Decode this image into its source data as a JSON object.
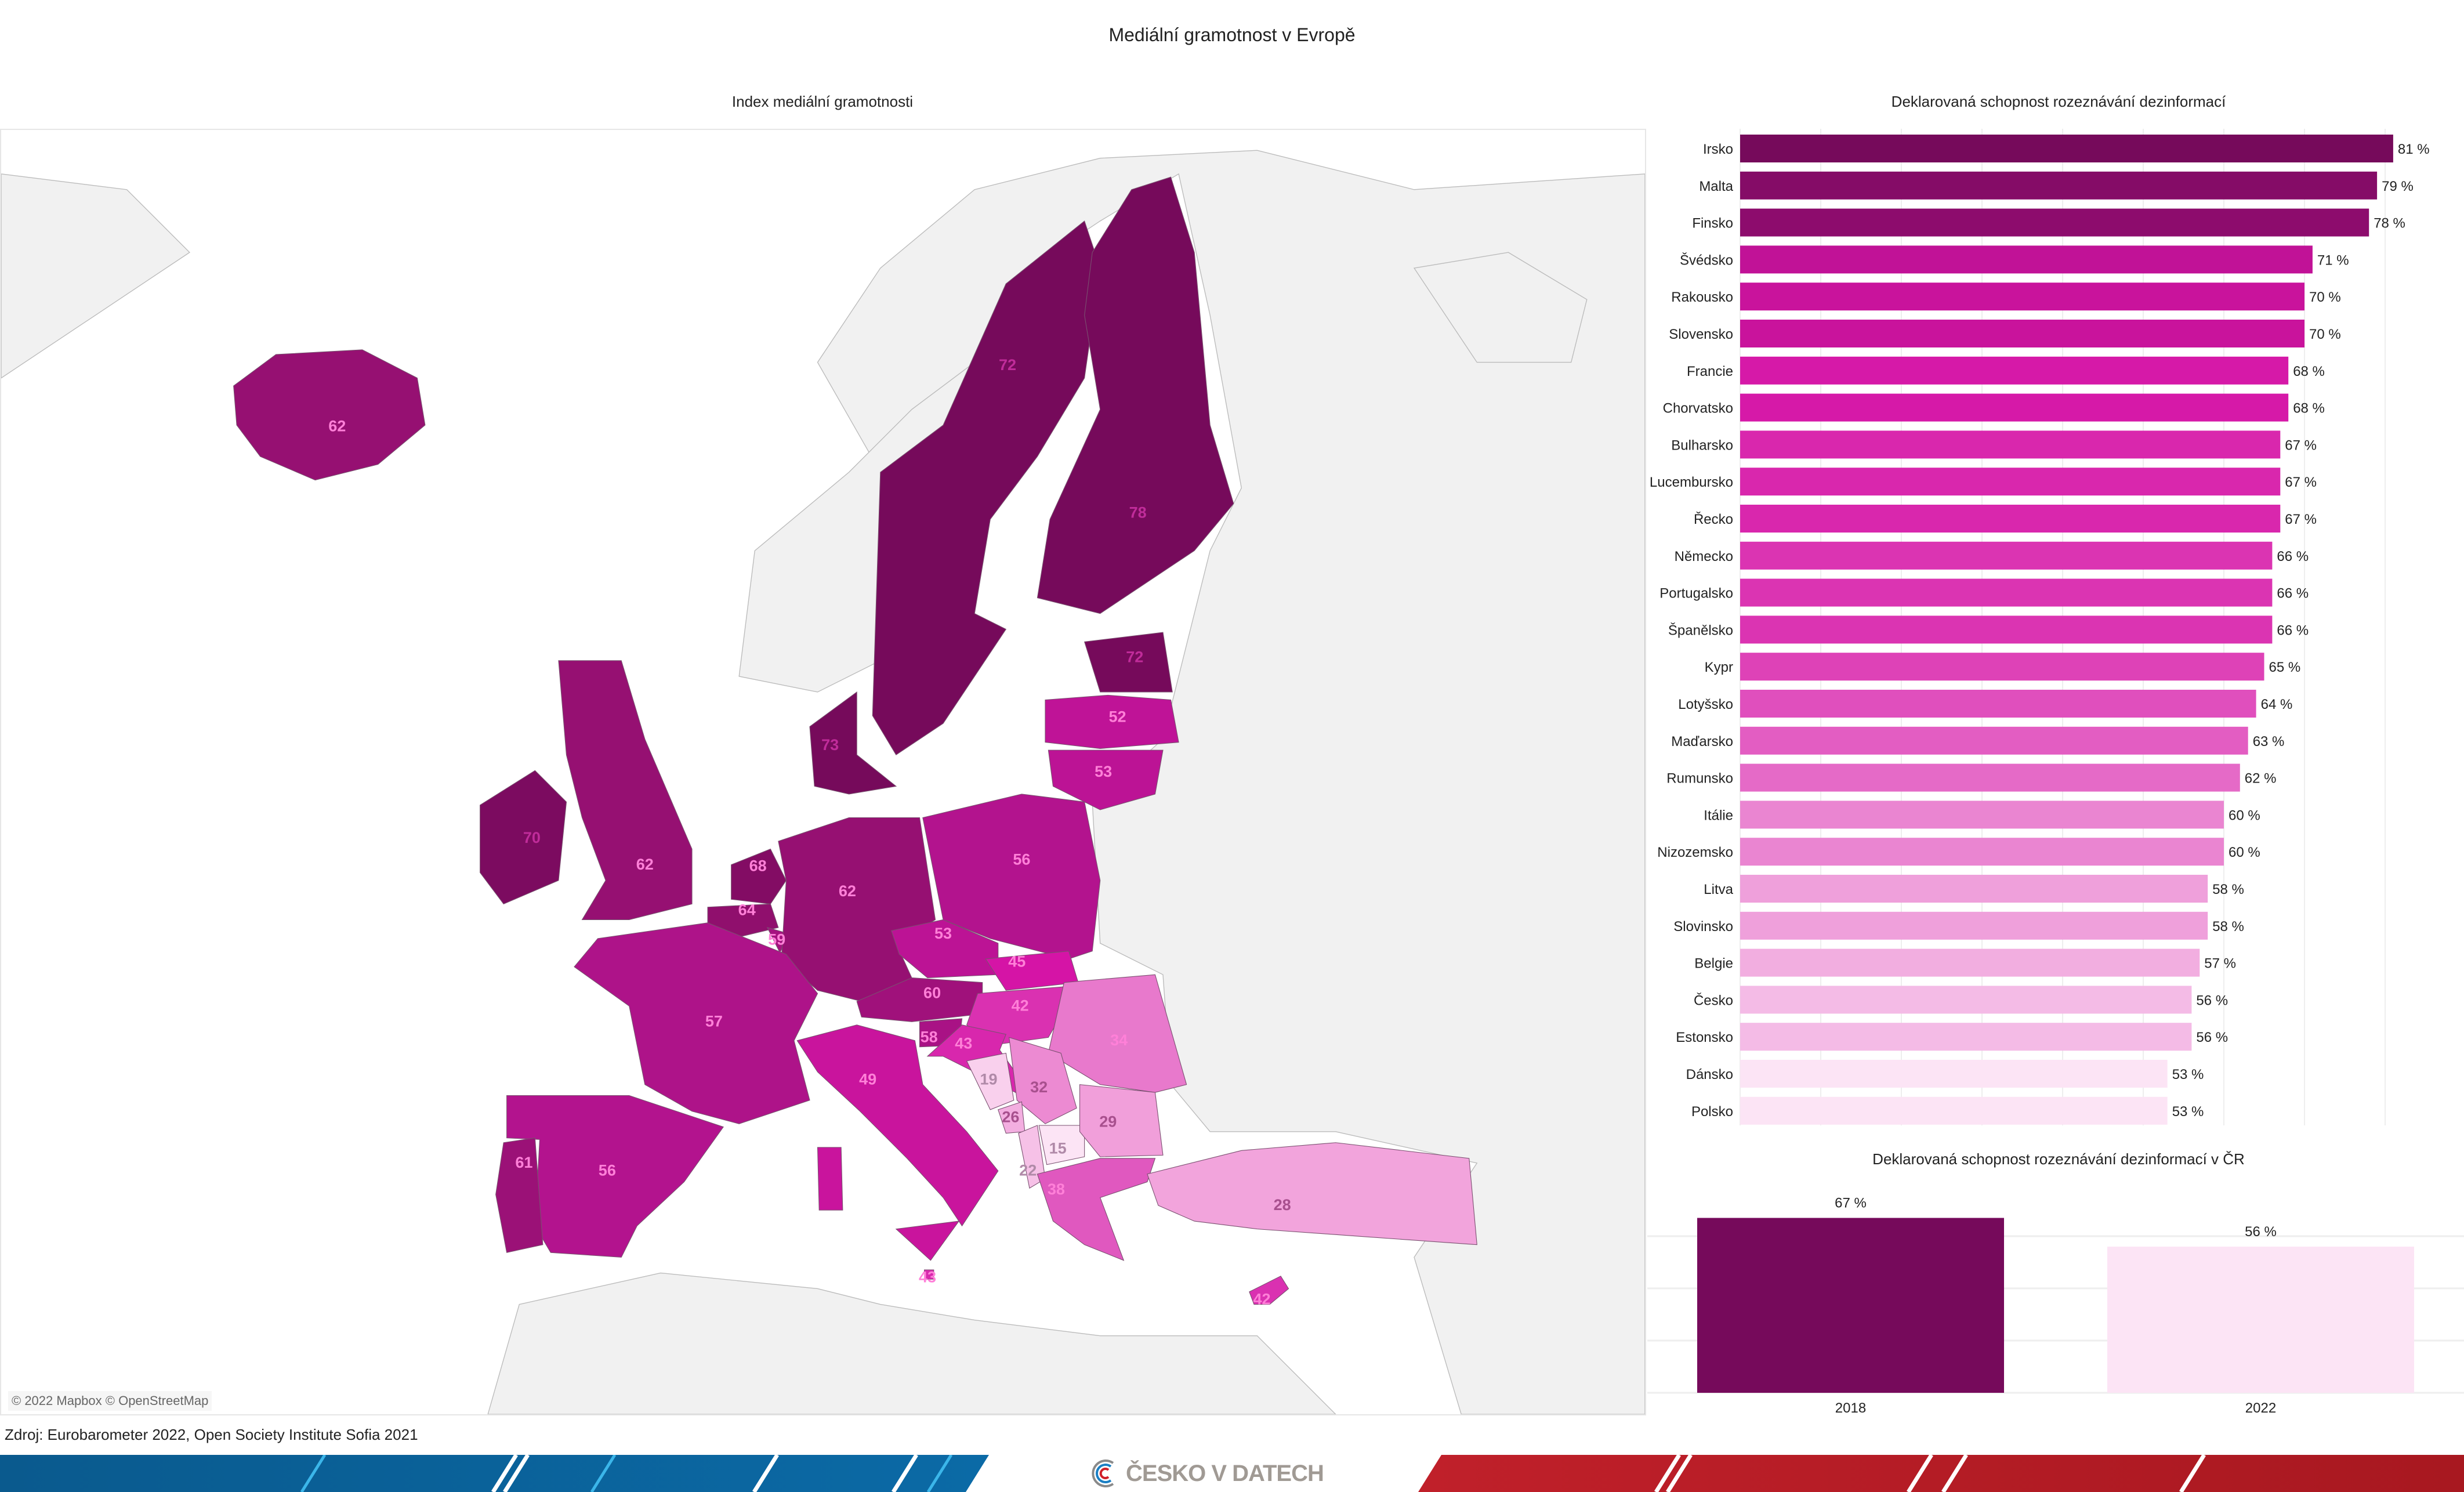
{
  "title": "Mediální gramotnost v Evropě",
  "map": {
    "title": "Index mediální gramotnosti",
    "attribution": "© 2022 Mapbox © OpenStreetMap",
    "values": {
      "IS": 62,
      "SE": 72,
      "FI": 78,
      "EE": 72,
      "LV": 52,
      "LT": 53,
      "DK": 73,
      "IE": 70,
      "UK": 62,
      "NL": 68,
      "BE": 64,
      "LU": 59,
      "DE": 62,
      "PL": 56,
      "CZ": 53,
      "SK": 45,
      "AT": 60,
      "HU": 42,
      "SI": 58,
      "HR": 43,
      "RO": 34,
      "BA": 19,
      "RS": 32,
      "ME": 26,
      "AL": 22,
      "MK": 15,
      "BG": 29,
      "GR": 38,
      "TR": 28,
      "FR": 57,
      "ES": 56,
      "PT": 61,
      "IT": 49,
      "MT": 43,
      "CY": 42
    }
  },
  "chart_data": [
    {
      "type": "bar",
      "orientation": "horizontal",
      "title": "Deklarovaná schopnost rozeznávání dezinformací",
      "unit": "%",
      "xlim": [
        0,
        90
      ],
      "grid": true,
      "categories": [
        "Irsko",
        "Malta",
        "Finsko",
        "Švédsko",
        "Rakousko",
        "Slovensko",
        "Francie",
        "Chorvatsko",
        "Bulharsko",
        "Lucembursko",
        "Řecko",
        "Německo",
        "Portugalsko",
        "Španělsko",
        "Kypr",
        "Lotyšsko",
        "Maďarsko",
        "Rumunsko",
        "Itálie",
        "Nizozemsko",
        "Litva",
        "Slovinsko",
        "Belgie",
        "Česko",
        "Estonsko",
        "Dánsko",
        "Polsko"
      ],
      "values": [
        81,
        79,
        78,
        71,
        70,
        70,
        68,
        68,
        67,
        67,
        67,
        66,
        66,
        66,
        65,
        64,
        63,
        62,
        60,
        60,
        58,
        58,
        57,
        56,
        56,
        53,
        53
      ],
      "labels": [
        "81 %",
        "79 %",
        "78 %",
        "71 %",
        "70 %",
        "70 %",
        "68 %",
        "68 %",
        "67 %",
        "67 %",
        "67 %",
        "66 %",
        "66 %",
        "66 %",
        "65 %",
        "64 %",
        "63 %",
        "62 %",
        "60 %",
        "60 %",
        "58 %",
        "58 %",
        "57 %",
        "56 %",
        "56 %",
        "53 %",
        "53 %"
      ]
    },
    {
      "type": "bar",
      "title": "Deklarovaná schopnost rozeznávání dezinformací v ČR",
      "unit": "%",
      "ylim": [
        0,
        70
      ],
      "grid": true,
      "categories": [
        "2018",
        "2022"
      ],
      "values": [
        67,
        56
      ],
      "labels": [
        "67 %",
        "56 %"
      ],
      "colors": [
        "#760a5b",
        "#fce4f5"
      ]
    }
  ],
  "colors": {
    "dark": "#760a5b",
    "light": "#fce4f5"
  },
  "source": "Zdroj: Eurobarometer 2022, Open Society Institute Sofia 2021",
  "footer": {
    "logo_text": "ČESKO V DATECH"
  }
}
